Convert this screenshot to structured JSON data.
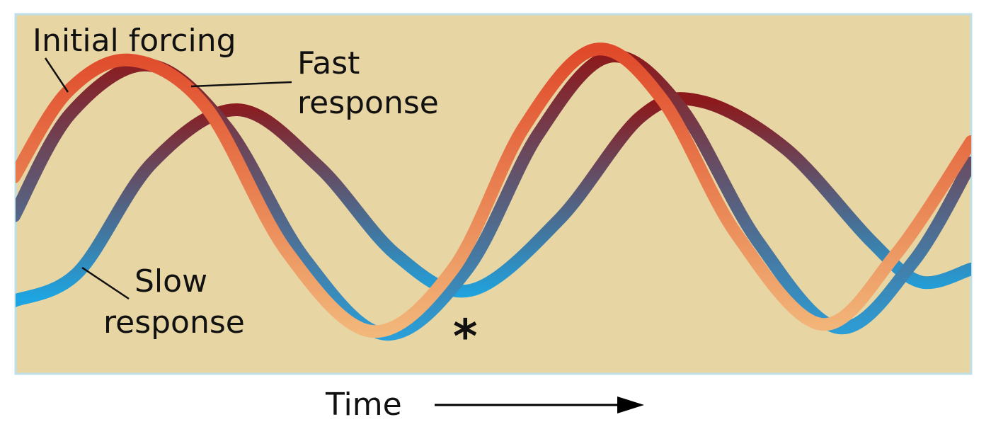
{
  "labels": {
    "initial_forcing": "Initial forcing",
    "fast_response_line1": "Fast",
    "fast_response_line2": "response",
    "slow_response_line1": "Slow",
    "slow_response_line2": "response",
    "marker": "*",
    "time": "Time"
  },
  "colors": {
    "panel_background": "#e8d5a4",
    "panel_border": "#bfe0e8",
    "initial_forcing_peak": "#e04a2a",
    "initial_forcing_trough": "#f2b77a",
    "fast_response_peak": "#8c1a1c",
    "fast_response_trough": "#2a9fd8",
    "slow_response_peak": "#8c1a1c",
    "slow_response_trough": "#1ea4e0",
    "leader_lines": "#111111",
    "time_arrow": "#000000"
  },
  "series": [
    {
      "name": "Initial forcing",
      "relative_lag": 0,
      "relative_amplitude": 1.0
    },
    {
      "name": "Fast response",
      "relative_lag": "small",
      "relative_amplitude": 1.0
    },
    {
      "name": "Slow response",
      "relative_lag": "large",
      "relative_amplitude": "reduced"
    }
  ]
}
